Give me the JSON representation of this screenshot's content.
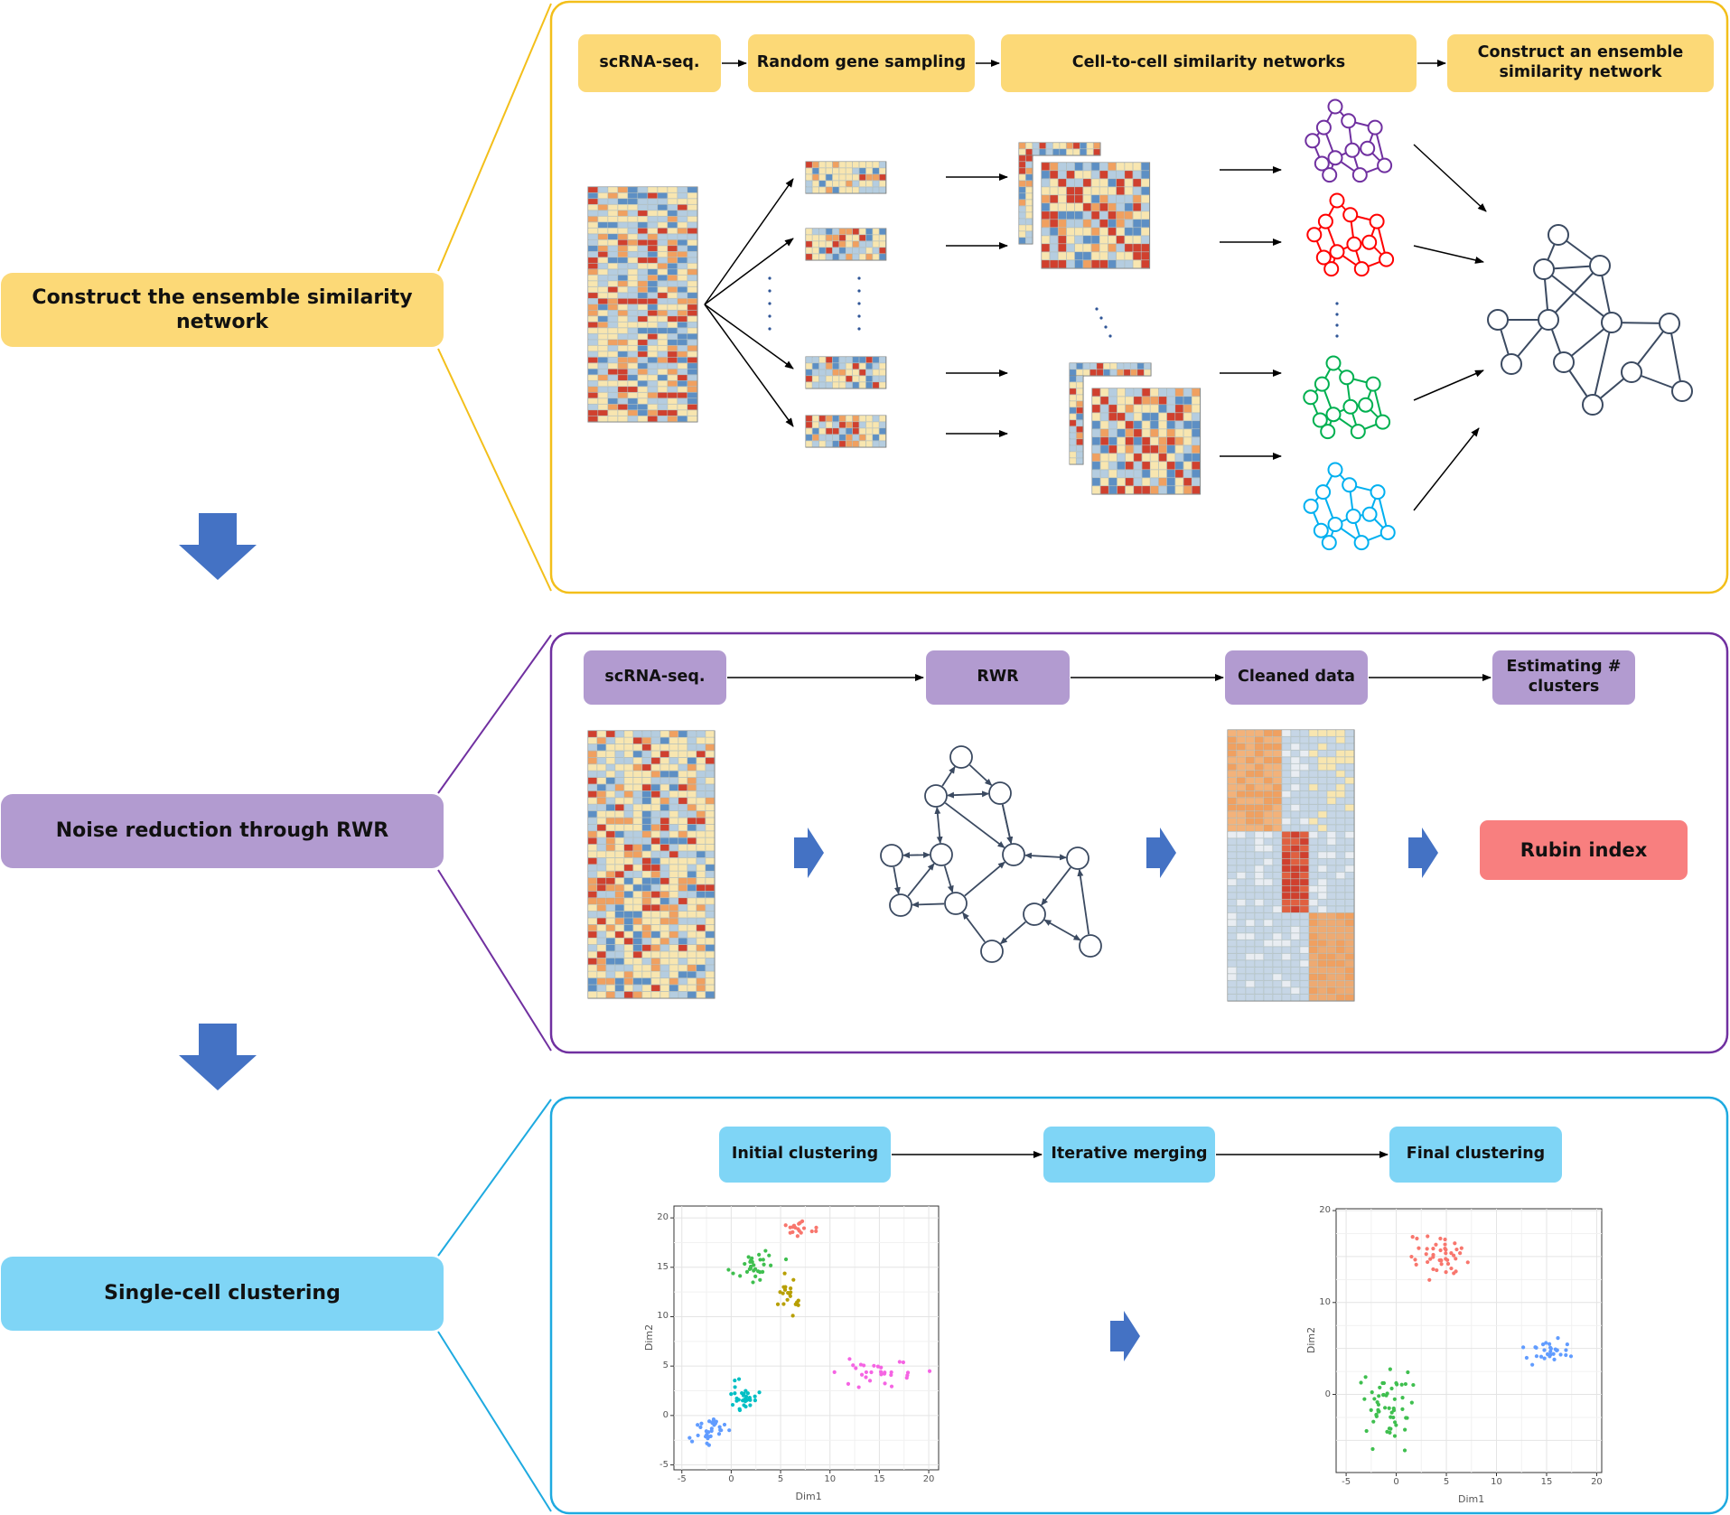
{
  "palette": {
    "yellow": "#fcd977",
    "yellow_border": "#f3bf1a",
    "purple": "#b29bd0",
    "purple_border": "#7030a0",
    "blue": "#7fd5f6",
    "blue_border": "#1eaae0",
    "arrow_blue": "#4472c4",
    "node_stroke": "#3b4a61",
    "heat_red": "#d0402e",
    "heat_orange": "#f0a060",
    "heat_cream": "#f8e6b0",
    "heat_lightblue": "#b5cde0",
    "heat_blue": "#5d8fc4"
  },
  "stages": [
    {
      "label": "Construct the ensemble similarity network",
      "color": "yellow"
    },
    {
      "label": "Noise reduction through RWR",
      "color": "purple"
    },
    {
      "label": "Single-cell clustering",
      "color": "blue"
    }
  ],
  "panel1": {
    "steps": [
      "scRNA-seq.",
      "Random gene sampling",
      "Cell-to-cell similarity networks",
      "Construct an ensemble similarity network"
    ],
    "network_colors": [
      "#7030a0",
      "#ff0000",
      "#00b050",
      "#00b0f0"
    ],
    "icons": [
      "expression-heatmap-icon",
      "similarity-matrix-icon",
      "network-graph-icon"
    ]
  },
  "panel2": {
    "steps": [
      "scRNA-seq.",
      "RWR",
      "Cleaned data",
      "Estimating # clusters"
    ],
    "result": "Rubin index",
    "icons": [
      "directed-graph-icon",
      "block-heatmap-icon"
    ]
  },
  "panel3": {
    "steps": [
      "Initial clustering",
      "Iterative merging",
      "Final clustering"
    ],
    "initial_plot": {
      "xlabel": "Dim1",
      "ylabel": "Dim2",
      "xticks": [
        "-5",
        "0",
        "5",
        "10",
        "15",
        "20"
      ],
      "yticks": [
        "20",
        "15",
        "10",
        "5",
        "0",
        "-5"
      ],
      "clusters": [
        {
          "color": "#f8766d",
          "center": [
            7,
            19
          ],
          "spread": [
            1.0,
            0.6
          ],
          "n": 18
        },
        {
          "color": "#3fbf4f",
          "center": [
            2.5,
            15
          ],
          "spread": [
            1.6,
            1.2
          ],
          "n": 30
        },
        {
          "color": "#b79f00",
          "center": [
            6,
            12
          ],
          "spread": [
            0.9,
            1.2
          ],
          "n": 22
        },
        {
          "color": "#f564e3",
          "center": [
            15,
            4.5
          ],
          "spread": [
            2.8,
            1.0
          ],
          "n": 30
        },
        {
          "color": "#00bfc4",
          "center": [
            1,
            2
          ],
          "spread": [
            1.0,
            1.0
          ],
          "n": 30
        },
        {
          "color": "#619cff",
          "center": [
            -2,
            -1.5
          ],
          "spread": [
            1.3,
            1.0
          ],
          "n": 30
        }
      ]
    },
    "final_plot": {
      "xlabel": "Dim1",
      "ylabel": "Dim2",
      "xticks": [
        "-5",
        "0",
        "5",
        "10",
        "15",
        "20"
      ],
      "yticks": [
        "20",
        "10",
        "0"
      ],
      "clusters": [
        {
          "color": "#f8766d",
          "center": [
            4,
            15
          ],
          "spread": [
            1.8,
            1.8
          ],
          "n": 45
        },
        {
          "color": "#3fbf4f",
          "center": [
            -1,
            -1
          ],
          "spread": [
            1.7,
            2.7
          ],
          "n": 55
        },
        {
          "color": "#619cff",
          "center": [
            15.5,
            4.5
          ],
          "spread": [
            1.8,
            0.9
          ],
          "n": 30
        }
      ]
    }
  }
}
